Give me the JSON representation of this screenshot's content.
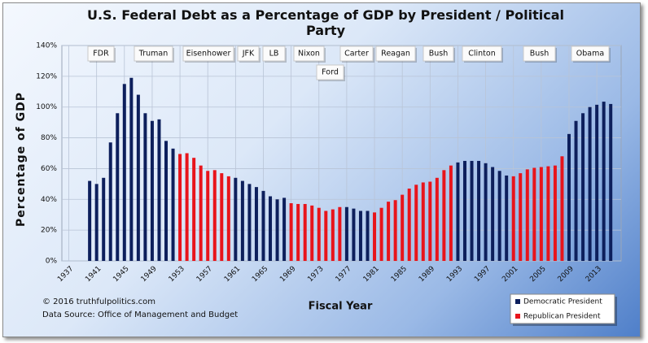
{
  "chart_data": {
    "type": "bar",
    "title": "U.S. Federal Debt as a Percentage of GDP by President / Political Party",
    "x_label": "Fiscal Year",
    "y_label": "Percentage of GDP",
    "footer": [
      "© 2016  truthfulpolitics.com",
      "Data Source:  Office of Management and Budget"
    ],
    "annotations": [
      "FDR",
      "Truman",
      "Eisenhower",
      "JFK",
      "LB",
      "Nixon",
      "Ford",
      "Carter",
      "Reagan",
      "Bush",
      "Clinton",
      "Bush",
      "Obama"
    ],
    "x": [
      1940,
      1941,
      1942,
      1943,
      1944,
      1945,
      1946,
      1947,
      1948,
      1949,
      1950,
      1951,
      1952,
      1953,
      1954,
      1955,
      1956,
      1957,
      1958,
      1959,
      1960,
      1961,
      1962,
      1963,
      1964,
      1965,
      1966,
      1967,
      1968,
      1969,
      1970,
      1971,
      1972,
      1973,
      1974,
      1975,
      1976,
      1977,
      1978,
      1979,
      1980,
      1981,
      1982,
      1983,
      1984,
      1985,
      1986,
      1987,
      1988,
      1989,
      1990,
      1991,
      1992,
      1993,
      1994,
      1995,
      1996,
      1997,
      1998,
      1999,
      2000,
      2001,
      2002,
      2003,
      2004,
      2005,
      2006,
      2007,
      2008,
      2009,
      2010,
      2011,
      2012,
      2013,
      2014,
      2015
    ],
    "series": [
      {
        "name": "Democratic President",
        "color": "#0d1f5c",
        "values": [
          52,
          50,
          54,
          77,
          96,
          115,
          119,
          108,
          96,
          91,
          92,
          78,
          73,
          null,
          null,
          null,
          null,
          null,
          null,
          null,
          null,
          54,
          52,
          50,
          48,
          45.5,
          42,
          40,
          41,
          null,
          null,
          null,
          null,
          null,
          null,
          null,
          null,
          35,
          34,
          32.5,
          32.5,
          null,
          null,
          null,
          null,
          null,
          null,
          null,
          null,
          null,
          null,
          null,
          null,
          64,
          65,
          65,
          65,
          63.5,
          61,
          58.5,
          55.5,
          null,
          null,
          null,
          null,
          null,
          null,
          null,
          null,
          82.5,
          91,
          96,
          100,
          101.5,
          103.5,
          102
        ]
      },
      {
        "name": "Republican President",
        "color": "#e8141b",
        "values": [
          null,
          null,
          null,
          null,
          null,
          null,
          null,
          null,
          null,
          null,
          null,
          null,
          null,
          69.5,
          70,
          67,
          62,
          58.5,
          59,
          57,
          55,
          null,
          null,
          null,
          null,
          null,
          null,
          null,
          null,
          37.5,
          37,
          37,
          36,
          34.5,
          32.5,
          33.5,
          35,
          null,
          null,
          null,
          null,
          31.5,
          34.5,
          38.5,
          39.5,
          43,
          47,
          49.5,
          51,
          51.5,
          54,
          59,
          62,
          null,
          null,
          null,
          null,
          null,
          null,
          null,
          null,
          55,
          57,
          59.5,
          60.5,
          61,
          61.5,
          62,
          68,
          null,
          null,
          null,
          null,
          null,
          null,
          null
        ]
      }
    ],
    "xlim": [
      1936,
      2016.5
    ],
    "xticks": [
      1937,
      1941,
      1945,
      1949,
      1953,
      1957,
      1961,
      1965,
      1969,
      1973,
      1977,
      1981,
      1985,
      1989,
      1993,
      1997,
      2001,
      2005,
      2009,
      2013
    ],
    "ylim": [
      0,
      140
    ],
    "yticks": [
      {
        "value": 0,
        "label": "0%"
      },
      {
        "value": 20,
        "label": "20%"
      },
      {
        "value": 40,
        "label": "40%"
      },
      {
        "value": 60,
        "label": "60%"
      },
      {
        "value": 80,
        "label": "80%"
      },
      {
        "value": 100,
        "label": "100%"
      },
      {
        "value": 120,
        "label": "120%"
      },
      {
        "value": 140,
        "label": "140%"
      }
    ],
    "grid": true,
    "legend": "bottom-right"
  }
}
